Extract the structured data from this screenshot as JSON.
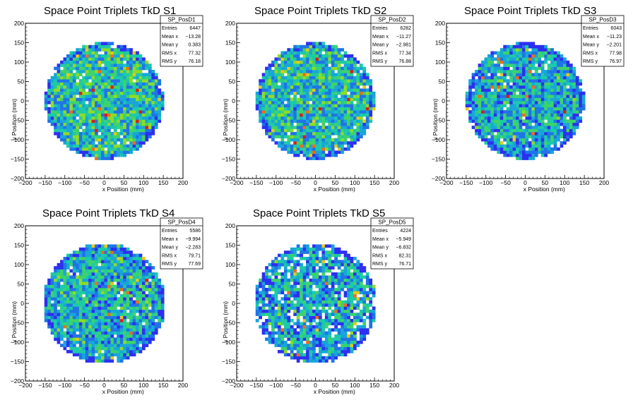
{
  "chart_data": [
    {
      "type": "heatmap",
      "title": "Space Point Triplets TkD S1",
      "xlabel": "x Position (mm)",
      "ylabel": "y Position (mm)",
      "xlim": [
        -200,
        200
      ],
      "ylim": [
        -200,
        200
      ],
      "xticks": [
        "−200",
        "−150",
        "−100",
        "−50",
        "0",
        "50",
        "100",
        "150",
        "200"
      ],
      "yticks": [
        "−200",
        "−150",
        "−100",
        "−50",
        "0",
        "50",
        "100",
        "150",
        "200"
      ],
      "stats": {
        "name": "SP_PosD1",
        "rows": [
          {
            "label": "Entries",
            "value": "6447"
          },
          {
            "label": "Mean x",
            "value": "−13.28"
          },
          {
            "label": "Mean y",
            "value": "0.383"
          },
          {
            "label": "RMS x",
            "value": "77.32"
          },
          {
            "label": "RMS y",
            "value": "76.18"
          }
        ]
      },
      "distribution": {
        "radius": 150,
        "bin_size": 8,
        "mean_level": 0.38,
        "fill_fraction": 0.97,
        "seed": 11
      }
    },
    {
      "type": "heatmap",
      "title": "Space Point Triplets TkD S2",
      "xlabel": "x Position (mm)",
      "ylabel": "y Position (mm)",
      "xlim": [
        -200,
        200
      ],
      "ylim": [
        -200,
        200
      ],
      "xticks": [
        "−200",
        "−150",
        "−100",
        "−50",
        "0",
        "50",
        "100",
        "150",
        "200"
      ],
      "yticks": [
        "−200",
        "−150",
        "−100",
        "−50",
        "0",
        "50",
        "100",
        "150",
        "200"
      ],
      "stats": {
        "name": "SP_PosD2",
        "rows": [
          {
            "label": "Entries",
            "value": "6282"
          },
          {
            "label": "Mean x",
            "value": "−11.27"
          },
          {
            "label": "Mean y",
            "value": "−2.981"
          },
          {
            "label": "RMS x",
            "value": "77.34"
          },
          {
            "label": "RMS y",
            "value": "76.88"
          }
        ]
      },
      "distribution": {
        "radius": 150,
        "bin_size": 8,
        "mean_level": 0.36,
        "fill_fraction": 0.96,
        "seed": 23
      }
    },
    {
      "type": "heatmap",
      "title": "Space Point Triplets TkD S3",
      "xlabel": "x Position (mm)",
      "ylabel": "y Position (mm)",
      "xlim": [
        -200,
        200
      ],
      "ylim": [
        -200,
        200
      ],
      "xticks": [
        "−200",
        "−150",
        "−100",
        "−50",
        "0",
        "50",
        "100",
        "150",
        "200"
      ],
      "yticks": [
        "−200",
        "−150",
        "−100",
        "−50",
        "0",
        "50",
        "100",
        "150",
        "200"
      ],
      "stats": {
        "name": "SP_PosD3",
        "rows": [
          {
            "label": "Entries",
            "value": "6043"
          },
          {
            "label": "Mean x",
            "value": "−11.23"
          },
          {
            "label": "Mean y",
            "value": "−2.201"
          },
          {
            "label": "RMS x",
            "value": "77.98"
          },
          {
            "label": "RMS y",
            "value": "76.97"
          }
        ]
      },
      "distribution": {
        "radius": 150,
        "bin_size": 8,
        "mean_level": 0.3,
        "fill_fraction": 0.97,
        "seed": 37
      }
    },
    {
      "type": "heatmap",
      "title": "Space Point Triplets TkD S4",
      "xlabel": "x Position (mm)",
      "ylabel": "y Position (mm)",
      "xlim": [
        -200,
        200
      ],
      "ylim": [
        -200,
        200
      ],
      "xticks": [
        "−200",
        "−150",
        "−100",
        "−50",
        "0",
        "50",
        "100",
        "150",
        "200"
      ],
      "yticks": [
        "−200",
        "−150",
        "−100",
        "−50",
        "0",
        "50",
        "100",
        "150",
        "200"
      ],
      "stats": {
        "name": "SP_PosD4",
        "rows": [
          {
            "label": "Entries",
            "value": "5586"
          },
          {
            "label": "Mean x",
            "value": "−9.994"
          },
          {
            "label": "Mean y",
            "value": "−2.283"
          },
          {
            "label": "RMS x",
            "value": "79.71"
          },
          {
            "label": "RMS y",
            "value": "77.69"
          }
        ]
      },
      "distribution": {
        "radius": 155,
        "bin_size": 8,
        "mean_level": 0.32,
        "fill_fraction": 0.96,
        "seed": 41
      }
    },
    {
      "type": "heatmap",
      "title": "Space Point Triplets TkD S5",
      "xlabel": "x Position (mm)",
      "ylabel": "y Position (mm)",
      "xlim": [
        -200,
        200
      ],
      "ylim": [
        -200,
        200
      ],
      "xticks": [
        "−200",
        "−150",
        "−100",
        "−50",
        "0",
        "50",
        "100",
        "150",
        "200"
      ],
      "yticks": [
        "−200",
        "−150",
        "−100",
        "−50",
        "0",
        "50",
        "100",
        "150",
        "200"
      ],
      "stats": {
        "name": "SP_PosD5",
        "rows": [
          {
            "label": "Entries",
            "value": "4224"
          },
          {
            "label": "Mean x",
            "value": "−5.949"
          },
          {
            "label": "Mean y",
            "value": "−6.832"
          },
          {
            "label": "RMS x",
            "value": "82.31"
          },
          {
            "label": "RMS y",
            "value": "76.71"
          }
        ]
      },
      "distribution": {
        "radius": 155,
        "bin_size": 8,
        "mean_level": 0.28,
        "fill_fraction": 0.86,
        "seed": 53
      }
    }
  ],
  "colors": {
    "palette": [
      "#2d2ff0",
      "#1f74e6",
      "#18a6d8",
      "#1ccaa8",
      "#3ed36a",
      "#8edc26",
      "#e6c81c",
      "#f26a18",
      "#e01a12"
    ],
    "axis": "#000000",
    "background": "#ffffff"
  }
}
